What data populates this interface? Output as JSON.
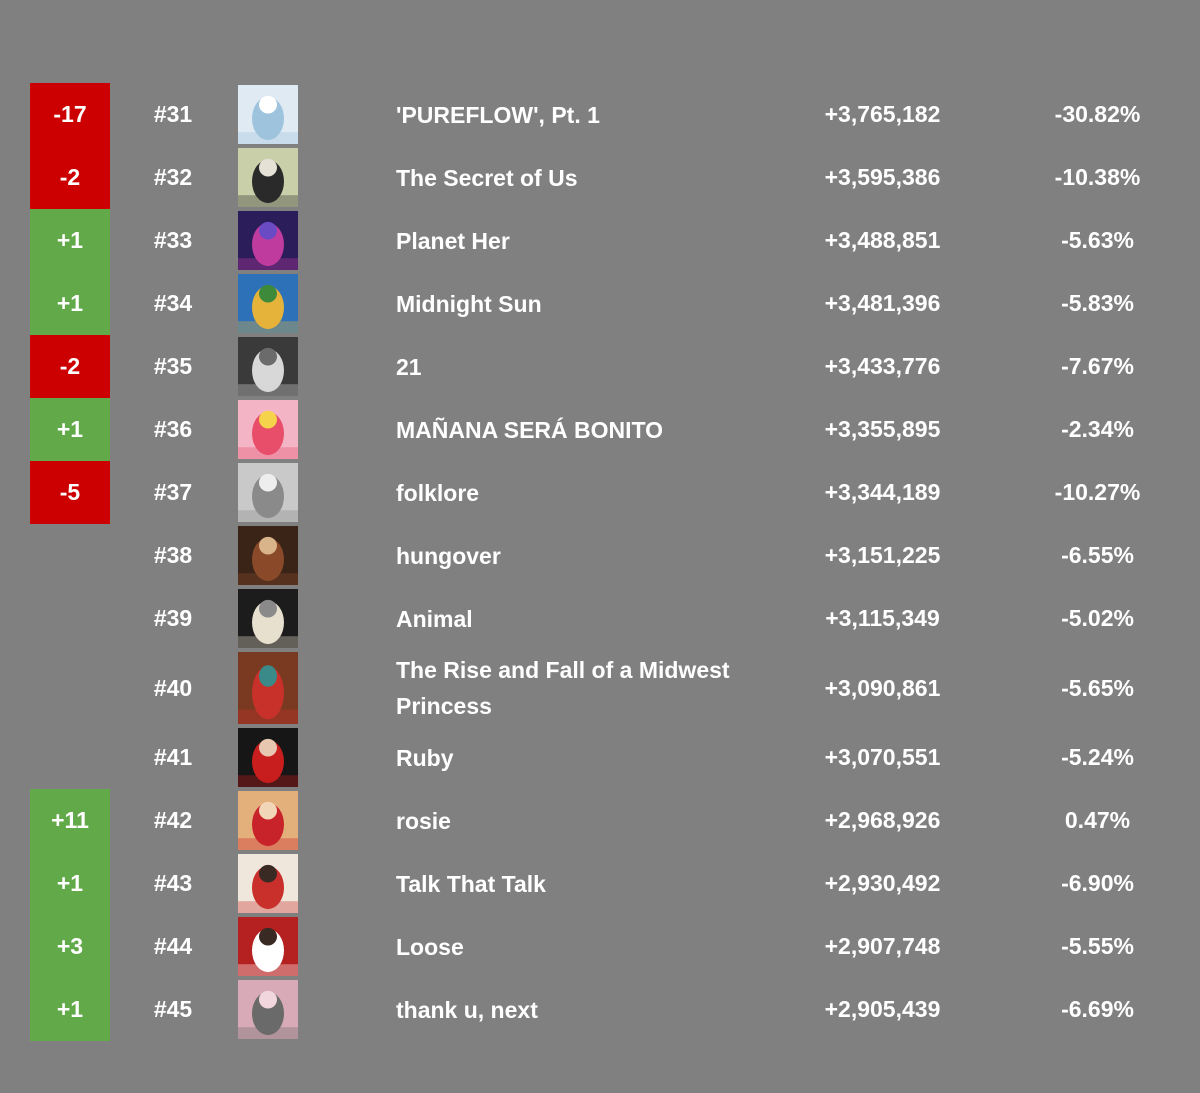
{
  "rows": [
    {
      "change": "-17",
      "dir": "down",
      "rank": "#31",
      "title": "'PUREFLOW', Pt. 1",
      "streams": "+3,765,182",
      "pct": "-30.82%",
      "cover": {
        "bg": "#dfeaf3",
        "fg": "#9ec3dc",
        "accent": "#ffffff"
      }
    },
    {
      "change": "-2",
      "dir": "down",
      "rank": "#32",
      "title": "The Secret of Us",
      "streams": "+3,595,386",
      "pct": "-10.38%",
      "cover": {
        "bg": "#c9cfa8",
        "fg": "#2a2a2a",
        "accent": "#e6e1d6"
      }
    },
    {
      "change": "+1",
      "dir": "up",
      "rank": "#33",
      "title": "Planet Her",
      "streams": "+3,488,851",
      "pct": "-5.63%",
      "cover": {
        "bg": "#2b1c5a",
        "fg": "#c03b9e",
        "accent": "#6a4bc4"
      }
    },
    {
      "change": "+1",
      "dir": "up",
      "rank": "#34",
      "title": "Midnight Sun",
      "streams": "+3,481,396",
      "pct": "-5.83%",
      "cover": {
        "bg": "#2d72b8",
        "fg": "#e6b33a",
        "accent": "#3c8a3a"
      }
    },
    {
      "change": "-2",
      "dir": "down",
      "rank": "#35",
      "title": "21",
      "streams": "+3,433,776",
      "pct": "-7.67%",
      "cover": {
        "bg": "#3a3a3a",
        "fg": "#d8d8d8",
        "accent": "#6b6b6b"
      }
    },
    {
      "change": "+1",
      "dir": "up",
      "rank": "#36",
      "title": "MAÑANA SERÁ BONITO",
      "streams": "+3,355,895",
      "pct": "-2.34%",
      "cover": {
        "bg": "#f3b5c6",
        "fg": "#e84d6a",
        "accent": "#f5d34a"
      }
    },
    {
      "change": "-5",
      "dir": "down",
      "rank": "#37",
      "title": "folklore",
      "streams": "+3,344,189",
      "pct": "-10.27%",
      "cover": {
        "bg": "#c9c9c9",
        "fg": "#8a8a8a",
        "accent": "#eeeeee"
      }
    },
    {
      "change": "",
      "dir": "none",
      "rank": "#38",
      "title": "hungover",
      "streams": "+3,151,225",
      "pct": "-6.55%",
      "cover": {
        "bg": "#3a2418",
        "fg": "#8a4a2a",
        "accent": "#d9b38a"
      }
    },
    {
      "change": "",
      "dir": "none",
      "rank": "#39",
      "title": "Animal",
      "streams": "+3,115,349",
      "pct": "-5.02%",
      "cover": {
        "bg": "#1c1c1c",
        "fg": "#e8e0cf",
        "accent": "#8a8a8a"
      }
    },
    {
      "change": "",
      "dir": "none",
      "rank": "#40",
      "title": "The Rise and Fall of a Midwest Princess",
      "streams": "+3,090,861",
      "pct": "-5.65%",
      "cover": {
        "bg": "#7a3a22",
        "fg": "#c8302a",
        "accent": "#3a8a8a"
      }
    },
    {
      "change": "",
      "dir": "none",
      "rank": "#41",
      "title": "Ruby",
      "streams": "+3,070,551",
      "pct": "-5.24%",
      "cover": {
        "bg": "#161616",
        "fg": "#c81e1e",
        "accent": "#e7c7b0"
      }
    },
    {
      "change": "+11",
      "dir": "up",
      "rank": "#42",
      "title": "rosie",
      "streams": "+2,968,926",
      "pct": "0.47%",
      "cover": {
        "bg": "#e3b07c",
        "fg": "#c8232a",
        "accent": "#f2d6b8"
      }
    },
    {
      "change": "+1",
      "dir": "up",
      "rank": "#43",
      "title": "Talk That Talk",
      "streams": "+2,930,492",
      "pct": "-6.90%",
      "cover": {
        "bg": "#efe6dc",
        "fg": "#c9302c",
        "accent": "#3a2a24"
      }
    },
    {
      "change": "+3",
      "dir": "up",
      "rank": "#44",
      "title": "Loose",
      "streams": "+2,907,748",
      "pct": "-5.55%",
      "cover": {
        "bg": "#b52020",
        "fg": "#ffffff",
        "accent": "#3a2a24"
      }
    },
    {
      "change": "+1",
      "dir": "up",
      "rank": "#45",
      "title": "thank u, next",
      "streams": "+2,905,439",
      "pct": "-6.69%",
      "cover": {
        "bg": "#d8a9b6",
        "fg": "#6a6a6a",
        "accent": "#f1d6dd"
      }
    }
  ],
  "colors": {
    "background": "#808080",
    "up": "#62a94a",
    "down": "#cc0000",
    "text": "#ffffff"
  }
}
